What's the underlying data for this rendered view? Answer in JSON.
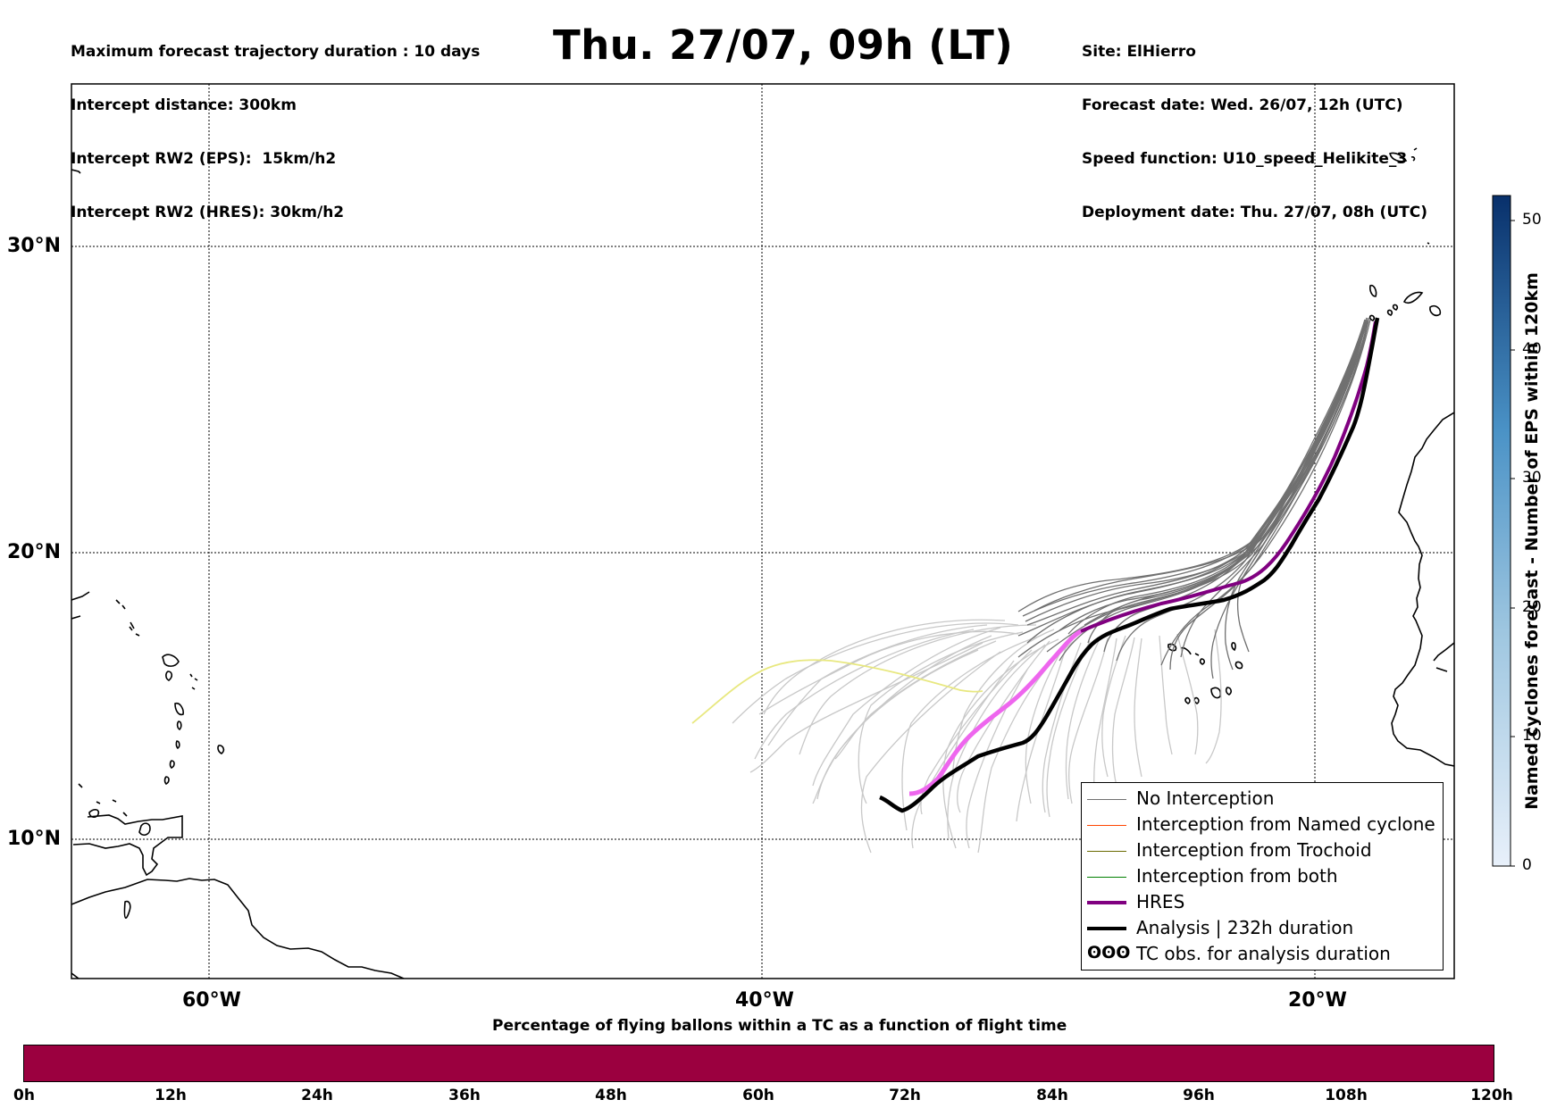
{
  "header": {
    "left_lines": [
      "Maximum forecast trajectory duration : 10 days",
      "Intercept distance: 300km",
      "Intercept RW2 (EPS):  15km/h2",
      "Intercept RW2 (HRES): 30km/h2"
    ],
    "title": "Thu. 27/07, 09h (LT)",
    "right_lines": [
      "Site: ElHierro",
      "Forecast date: Wed. 26/07, 12h (UTC)",
      "Speed function: U10_speed_Helikite_3",
      "Deployment date: Thu. 27/07, 08h (UTC)"
    ]
  },
  "map": {
    "lon_labels": [
      "60°W",
      "40°W",
      "20°W"
    ],
    "lat_labels": [
      "30°N",
      "20°N",
      "10°N"
    ],
    "colors": {
      "no_interception": "#707070",
      "eps_light": "#c8c8c8",
      "hres": "#800080",
      "hres_early": "#ee66ee",
      "analysis": "#000000",
      "yellow_track": "#e8e880",
      "named_cyclone": "#ff4500",
      "trochoid": "#6b6b00",
      "both": "#008000"
    }
  },
  "legend": {
    "items": [
      {
        "label": "No Interception",
        "color": "#707070",
        "style": "thin"
      },
      {
        "label": "Interception from Named cyclone",
        "color": "#ff4500",
        "style": "thin"
      },
      {
        "label": "Interception from Trochoid",
        "color": "#6b6b00",
        "style": "thin"
      },
      {
        "label": "Interception from both",
        "color": "#008000",
        "style": "thin"
      },
      {
        "label": "HRES",
        "color": "#800080",
        "style": "thick"
      },
      {
        "label": "Analysis | 232h duration",
        "color": "#000000",
        "style": "thick"
      },
      {
        "label": "TC obs. for analysis duration",
        "color": "#000000",
        "style": "symbol",
        "symbol": "ʘʘʘ"
      }
    ]
  },
  "colorbar": {
    "title": "Named cyclones forecast - Number of EPS within 120km",
    "ticks": [
      "0",
      "10",
      "20",
      "30",
      "40",
      "50"
    ],
    "colors": [
      "#e8f0fa",
      "#08306b"
    ]
  },
  "timebar": {
    "title": "Percentage of flying ballons within a TC as a function of flight time",
    "ticks": [
      "0h",
      "12h",
      "24h",
      "36h",
      "48h",
      "60h",
      "72h",
      "84h",
      "96h",
      "108h",
      "120h"
    ],
    "color": "#9b003f"
  }
}
